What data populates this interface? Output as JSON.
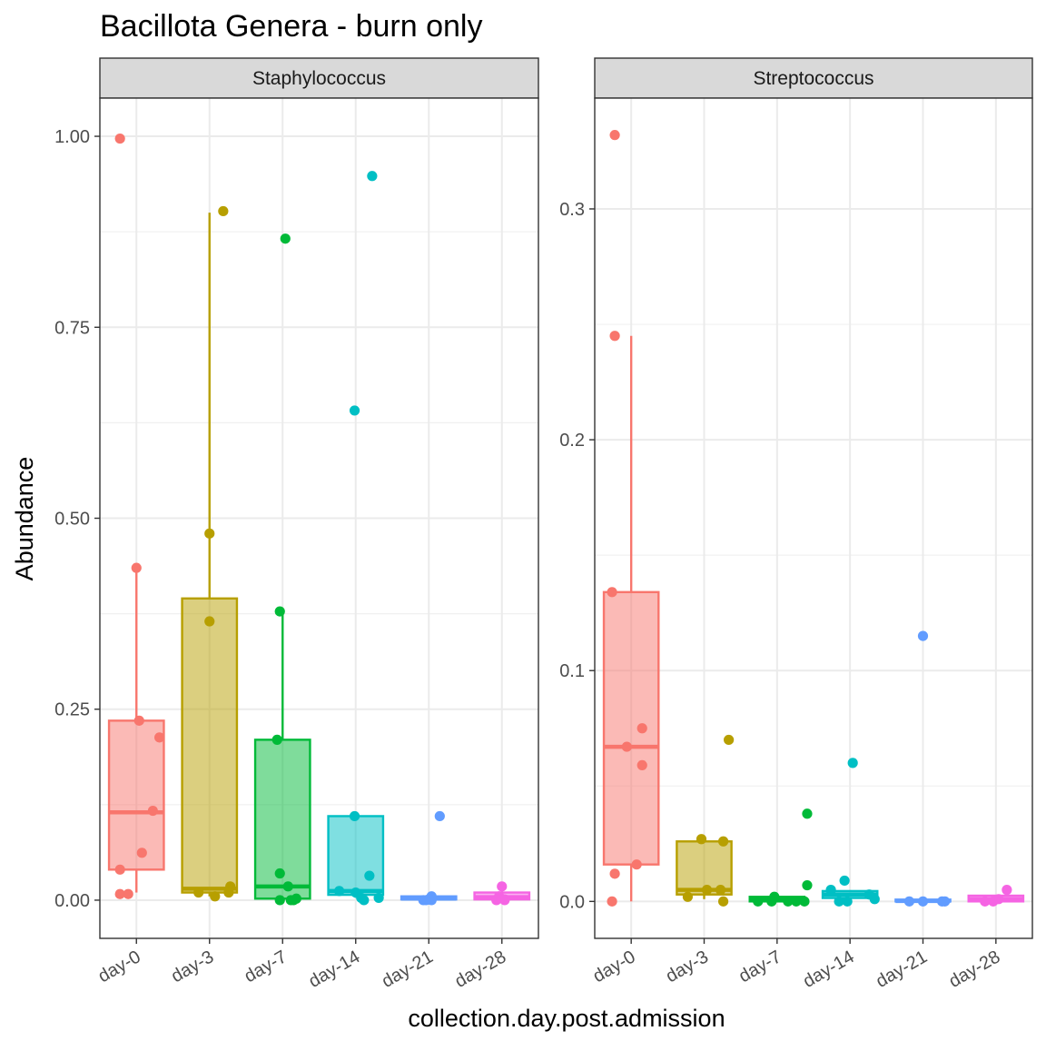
{
  "chart_data": {
    "type": "box",
    "title": "Bacillota Genera - burn only",
    "xlabel": "collection.day.post.admission",
    "ylabel": "Abundance",
    "categories": [
      "day-0",
      "day-3",
      "day-7",
      "day-14",
      "day-21",
      "day-28"
    ],
    "colors": {
      "day-0": "#F8766D",
      "day-3": "#B79F00",
      "day-7": "#00BA38",
      "day-14": "#00BFC4",
      "day-21": "#619CFF",
      "day-28": "#F564E3"
    },
    "grid": true,
    "legend": "none",
    "panels": [
      {
        "name": "Staphylococcus",
        "ylim": [
          -0.05,
          1.05
        ],
        "yticks": [
          0.0,
          0.25,
          0.5,
          0.75,
          1.0
        ],
        "ytick_labels": [
          "0.00",
          "0.25",
          "0.50",
          "0.75",
          "1.00"
        ],
        "boxes": [
          {
            "category": "day-0",
            "min": 0.01,
            "q1": 0.04,
            "median": 0.115,
            "q3": 0.235,
            "max": 0.435
          },
          {
            "category": "day-3",
            "min": 0.005,
            "q1": 0.01,
            "median": 0.015,
            "q3": 0.395,
            "max": 0.9
          },
          {
            "category": "day-7",
            "min": 0.0,
            "q1": 0.002,
            "median": 0.018,
            "q3": 0.21,
            "max": 0.378
          },
          {
            "category": "day-14",
            "min": 0.003,
            "q1": 0.007,
            "median": 0.012,
            "q3": 0.11,
            "max": 0.11
          },
          {
            "category": "day-21",
            "min": 0.0,
            "q1": 0.001,
            "median": 0.002,
            "q3": 0.005,
            "max": 0.005
          },
          {
            "category": "day-28",
            "min": 0.0,
            "q1": 0.001,
            "median": 0.004,
            "q3": 0.01,
            "max": 0.012
          }
        ],
        "points": [
          {
            "category": "day-0",
            "values": [
              0.997,
              0.435,
              0.235,
              0.213,
              0.117,
              0.062,
              0.04,
              0.008,
              0.008
            ],
            "jitter": [
              -0.3,
              0.0,
              0.05,
              0.42,
              0.3,
              0.1,
              -0.3,
              -0.3,
              -0.15
            ]
          },
          {
            "category": "day-3",
            "values": [
              0.902,
              0.48,
              0.365,
              0.018,
              0.01,
              0.01,
              0.005
            ],
            "jitter": [
              0.25,
              0.0,
              0.0,
              0.38,
              -0.2,
              0.35,
              0.1
            ]
          },
          {
            "category": "day-7",
            "values": [
              0.866,
              0.378,
              0.21,
              0.035,
              0.018,
              0.0,
              0.0,
              0.0,
              0.002
            ],
            "jitter": [
              0.05,
              -0.05,
              -0.1,
              -0.05,
              0.1,
              -0.05,
              0.2,
              0.15,
              0.25
            ]
          },
          {
            "category": "day-14",
            "values": [
              0.948,
              0.641,
              0.11,
              0.032,
              0.012,
              0.01,
              0.003,
              0.0,
              0.003
            ],
            "jitter": [
              0.3,
              -0.02,
              -0.02,
              0.25,
              -0.3,
              0.0,
              0.42,
              0.15,
              0.1
            ]
          },
          {
            "category": "day-21",
            "values": [
              0.11,
              0.005,
              0.0,
              0.0,
              0.001,
              0.0
            ],
            "jitter": [
              0.2,
              0.05,
              -0.1,
              0.05,
              0.0,
              -0.05
            ]
          },
          {
            "category": "day-28",
            "values": [
              0.018,
              0.005,
              0.0,
              0.0,
              0.001
            ],
            "jitter": [
              0.0,
              -0.05,
              0.05,
              -0.1,
              0.05
            ]
          }
        ]
      },
      {
        "name": "Streptococcus",
        "ylim": [
          -0.016,
          0.348
        ],
        "yticks": [
          0.0,
          0.1,
          0.2,
          0.3
        ],
        "ytick_labels": [
          "0.0",
          "0.1",
          "0.2",
          "0.3"
        ],
        "boxes": [
          {
            "category": "day-0",
            "min": 0.0,
            "q1": 0.016,
            "median": 0.067,
            "q3": 0.134,
            "max": 0.245
          },
          {
            "category": "day-3",
            "min": 0.001,
            "q1": 0.003,
            "median": 0.005,
            "q3": 0.026,
            "max": 0.026
          },
          {
            "category": "day-7",
            "min": 0.0,
            "q1": 0.0,
            "median": 0.0007,
            "q3": 0.002,
            "max": 0.002
          },
          {
            "category": "day-14",
            "min": 0.001,
            "q1": 0.0015,
            "median": 0.003,
            "q3": 0.0045,
            "max": 0.0045
          },
          {
            "category": "day-21",
            "min": 0.0,
            "q1": 0.0,
            "median": 0.0002,
            "q3": 0.0008,
            "max": 0.0008
          },
          {
            "category": "day-28",
            "min": 0.0,
            "q1": 0.0,
            "median": 0.001,
            "q3": 0.0025,
            "max": 0.0025
          }
        ],
        "points": [
          {
            "category": "day-0",
            "values": [
              0.332,
              0.245,
              0.134,
              0.075,
              0.067,
              0.059,
              0.016,
              0.012,
              0.0
            ],
            "jitter": [
              -0.3,
              -0.3,
              -0.35,
              0.2,
              -0.08,
              0.2,
              0.1,
              -0.3,
              -0.35
            ]
          },
          {
            "category": "day-3",
            "values": [
              0.07,
              0.027,
              0.026,
              0.005,
              0.005,
              0.002,
              0.0
            ],
            "jitter": [
              0.45,
              -0.05,
              0.35,
              0.05,
              0.3,
              -0.3,
              0.35
            ]
          },
          {
            "category": "day-7",
            "values": [
              0.038,
              0.007,
              0.002,
              0.0,
              0.0,
              0.0,
              0.0,
              0.0
            ],
            "jitter": [
              0.55,
              0.55,
              -0.05,
              -0.35,
              -0.1,
              0.2,
              0.35,
              0.5
            ]
          },
          {
            "category": "day-14",
            "values": [
              0.06,
              0.009,
              0.005,
              0.003,
              0.001,
              0.0,
              0.0
            ],
            "jitter": [
              0.05,
              -0.1,
              -0.35,
              0.35,
              0.45,
              -0.2,
              -0.05
            ]
          },
          {
            "category": "day-21",
            "values": [
              0.115,
              0.0,
              0.0,
              0.0,
              0.0
            ],
            "jitter": [
              0.0,
              -0.25,
              0.0,
              0.35,
              0.4
            ]
          },
          {
            "category": "day-28",
            "values": [
              0.005,
              0.001,
              0.0,
              0.0
            ],
            "jitter": [
              0.2,
              0.05,
              -0.2,
              -0.05
            ]
          }
        ]
      }
    ]
  }
}
